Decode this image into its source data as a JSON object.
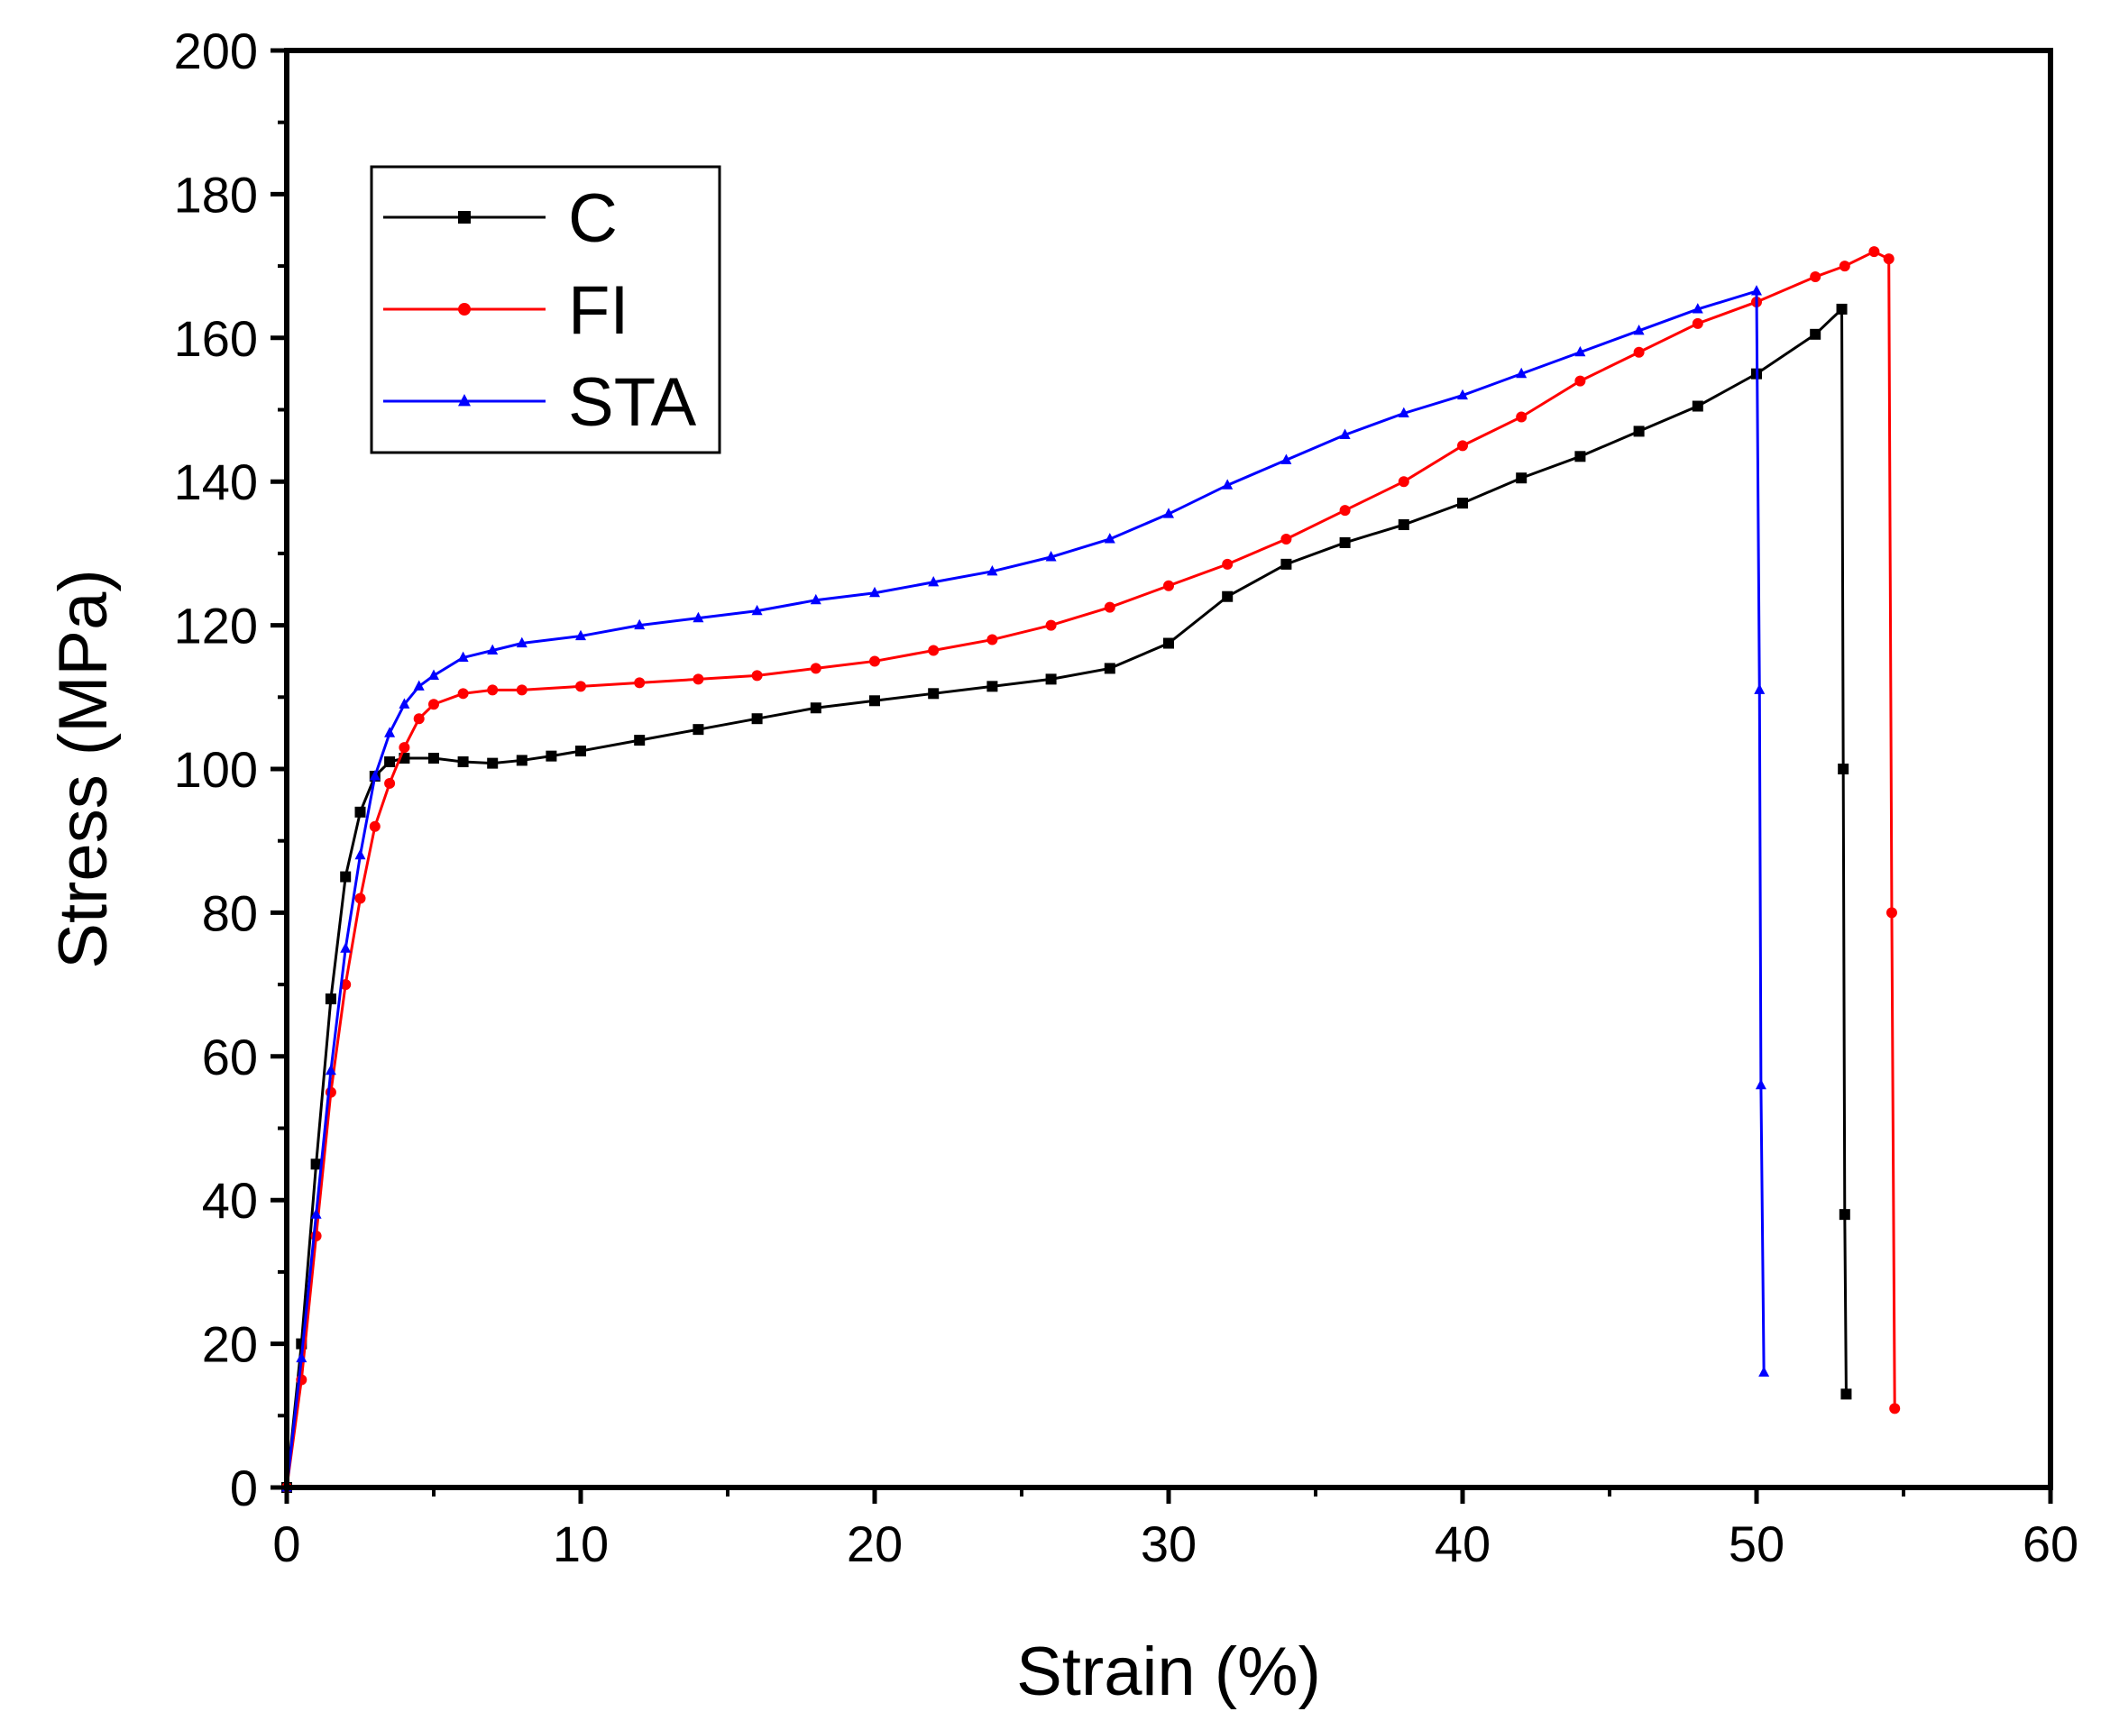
{
  "chart_data": {
    "type": "line",
    "title": "",
    "xlabel": "Strain (%)",
    "ylabel": "Stress (MPa)",
    "xlim": [
      0,
      60
    ],
    "ylim": [
      0,
      200
    ],
    "xticks": [
      0,
      10,
      20,
      30,
      40,
      50,
      60
    ],
    "yticks": [
      0,
      20,
      40,
      60,
      80,
      100,
      120,
      140,
      160,
      180,
      200
    ],
    "grid": false,
    "legend_position": "top-left",
    "series": [
      {
        "name": "C",
        "color": "#000000",
        "marker": "square",
        "x": [
          0,
          0.5,
          1.0,
          1.5,
          2.0,
          2.5,
          3.0,
          3.5,
          4.0,
          5.0,
          6.0,
          7.0,
          8.0,
          9.0,
          10.0,
          12.0,
          14.0,
          16.0,
          18.0,
          20.0,
          22.0,
          24.0,
          26.0,
          28.0,
          30.0,
          32.0,
          34.0,
          36.0,
          38.0,
          40.0,
          42.0,
          44.0,
          46.0,
          48.0,
          50.0,
          52.0,
          52.9,
          52.95,
          53.0,
          53.05
        ],
        "y": [
          0,
          20,
          45,
          68,
          85,
          94,
          99,
          101,
          101.5,
          101.5,
          101,
          100.8,
          101.2,
          101.8,
          102.5,
          104,
          105.5,
          107,
          108.5,
          109.5,
          110.5,
          111.5,
          112.5,
          114,
          117.5,
          124,
          128.5,
          131.5,
          134,
          137,
          140.5,
          143.5,
          147,
          150.5,
          155,
          160.5,
          164,
          100,
          38,
          13
        ]
      },
      {
        "name": "FI",
        "color": "#ff0000",
        "marker": "circle",
        "x": [
          0,
          0.5,
          1.0,
          1.5,
          2.0,
          2.5,
          3.0,
          3.5,
          4.0,
          4.5,
          5.0,
          6.0,
          7.0,
          8.0,
          10.0,
          12.0,
          14.0,
          16.0,
          18.0,
          20.0,
          22.0,
          24.0,
          26.0,
          28.0,
          30.0,
          32.0,
          34.0,
          36.0,
          38.0,
          40.0,
          42.0,
          44.0,
          46.0,
          48.0,
          50.0,
          52.0,
          53.0,
          54.0,
          54.5,
          54.6,
          54.7
        ],
        "y": [
          0,
          15,
          35,
          55,
          70,
          82,
          92,
          98,
          103,
          107,
          109,
          110.5,
          111,
          111,
          111.5,
          112,
          112.5,
          113,
          114,
          115,
          116.5,
          118,
          120,
          122.5,
          125.5,
          128.5,
          132,
          136,
          140,
          145,
          149,
          154,
          158,
          162,
          165,
          168.5,
          170,
          172,
          171,
          80,
          11
        ]
      },
      {
        "name": "STA",
        "color": "#0000ff",
        "marker": "triangle",
        "x": [
          0,
          0.5,
          1.0,
          1.5,
          2.0,
          2.5,
          3.0,
          3.5,
          4.0,
          4.5,
          5.0,
          6.0,
          7.0,
          8.0,
          10.0,
          12.0,
          14.0,
          16.0,
          18.0,
          20.0,
          22.0,
          24.0,
          26.0,
          28.0,
          30.0,
          32.0,
          34.0,
          36.0,
          38.0,
          40.0,
          42.0,
          44.0,
          46.0,
          48.0,
          50.0,
          50.1,
          50.15,
          50.25
        ],
        "y": [
          0,
          18,
          38,
          58,
          75,
          88,
          99,
          105,
          109,
          111.5,
          113,
          115.5,
          116.5,
          117.5,
          118.5,
          120,
          121,
          122,
          123.5,
          124.5,
          126,
          127.5,
          129.5,
          132,
          135.5,
          139.5,
          143,
          146.5,
          149.5,
          152,
          155,
          158,
          161,
          164,
          166.5,
          111,
          56,
          16
        ]
      }
    ]
  }
}
